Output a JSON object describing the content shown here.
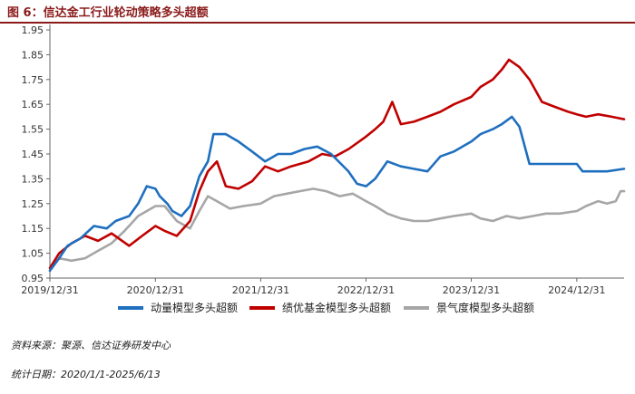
{
  "title": "图 6：信达金工行业轮动策略多头超额",
  "source_note": "资料来源：聚源、信达证券研发中心",
  "period_note": "统计日期：2020/1/1-2025/6/13",
  "chart_data": {
    "type": "line",
    "title": "",
    "xlabel": "",
    "ylabel": "",
    "ylim": [
      0.95,
      1.95
    ],
    "yticks": [
      "0.95",
      "1.05",
      "1.15",
      "1.25",
      "1.35",
      "1.45",
      "1.55",
      "1.65",
      "1.75",
      "1.85",
      "1.95"
    ],
    "xticks": [
      "2019/12/31",
      "2020/12/31",
      "2021/12/31",
      "2022/12/31",
      "2023/12/31",
      "2024/12/31"
    ],
    "xlim": [
      "2019-12-31",
      "2025-06-13"
    ],
    "grid": false,
    "legend": "bottom",
    "series": [
      {
        "name": "动量模型多头超额",
        "color": "#1f6fbf",
        "points": [
          [
            "2019-12-31",
            0.98
          ],
          [
            "2020-02-01",
            1.03
          ],
          [
            "2020-03-01",
            1.08
          ],
          [
            "2020-04-15",
            1.11
          ],
          [
            "2020-06-01",
            1.16
          ],
          [
            "2020-07-15",
            1.15
          ],
          [
            "2020-08-15",
            1.18
          ],
          [
            "2020-10-01",
            1.2
          ],
          [
            "2020-11-01",
            1.25
          ],
          [
            "2020-12-01",
            1.32
          ],
          [
            "2020-12-31",
            1.31
          ],
          [
            "2021-01-15",
            1.28
          ],
          [
            "2021-02-10",
            1.25
          ],
          [
            "2021-02-28",
            1.22
          ],
          [
            "2021-03-31",
            1.2
          ],
          [
            "2021-04-30",
            1.24
          ],
          [
            "2021-06-01",
            1.36
          ],
          [
            "2021-07-01",
            1.42
          ],
          [
            "2021-07-20",
            1.53
          ],
          [
            "2021-09-01",
            1.53
          ],
          [
            "2021-10-15",
            1.5
          ],
          [
            "2021-12-01",
            1.46
          ],
          [
            "2022-01-15",
            1.42
          ],
          [
            "2022-03-01",
            1.45
          ],
          [
            "2022-04-15",
            1.45
          ],
          [
            "2022-06-01",
            1.47
          ],
          [
            "2022-07-15",
            1.48
          ],
          [
            "2022-09-01",
            1.45
          ],
          [
            "2022-10-31",
            1.38
          ],
          [
            "2022-11-30",
            1.33
          ],
          [
            "2022-12-31",
            1.32
          ],
          [
            "2023-02-01",
            1.35
          ],
          [
            "2023-03-15",
            1.42
          ],
          [
            "2023-05-01",
            1.4
          ],
          [
            "2023-06-15",
            1.39
          ],
          [
            "2023-08-01",
            1.38
          ],
          [
            "2023-09-15",
            1.44
          ],
          [
            "2023-11-01",
            1.46
          ],
          [
            "2023-12-31",
            1.5
          ],
          [
            "2024-02-01",
            1.53
          ],
          [
            "2024-03-15",
            1.55
          ],
          [
            "2024-04-15",
            1.57
          ],
          [
            "2024-05-20",
            1.6
          ],
          [
            "2024-06-15",
            1.56
          ],
          [
            "2024-07-20",
            1.41
          ],
          [
            "2024-09-01",
            1.41
          ],
          [
            "2024-10-15",
            1.41
          ],
          [
            "2024-12-01",
            1.41
          ],
          [
            "2024-12-31",
            1.41
          ],
          [
            "2025-01-20",
            1.38
          ],
          [
            "2025-03-01",
            1.38
          ],
          [
            "2025-04-15",
            1.38
          ],
          [
            "2025-06-13",
            1.39
          ]
        ]
      },
      {
        "name": "绩优基金模型多头超额",
        "color": "#c00000",
        "points": [
          [
            "2019-12-31",
            0.99
          ],
          [
            "2020-02-01",
            1.05
          ],
          [
            "2020-03-15",
            1.09
          ],
          [
            "2020-05-01",
            1.12
          ],
          [
            "2020-06-15",
            1.1
          ],
          [
            "2020-08-01",
            1.13
          ],
          [
            "2020-10-01",
            1.08
          ],
          [
            "2020-11-15",
            1.12
          ],
          [
            "2020-12-31",
            1.16
          ],
          [
            "2021-02-01",
            1.14
          ],
          [
            "2021-03-15",
            1.12
          ],
          [
            "2021-04-30",
            1.18
          ],
          [
            "2021-06-01",
            1.3
          ],
          [
            "2021-07-01",
            1.38
          ],
          [
            "2021-08-01",
            1.42
          ],
          [
            "2021-09-01",
            1.32
          ],
          [
            "2021-10-15",
            1.31
          ],
          [
            "2021-12-01",
            1.34
          ],
          [
            "2022-01-15",
            1.4
          ],
          [
            "2022-03-01",
            1.38
          ],
          [
            "2022-04-15",
            1.4
          ],
          [
            "2022-06-15",
            1.42
          ],
          [
            "2022-08-01",
            1.45
          ],
          [
            "2022-09-15",
            1.44
          ],
          [
            "2022-11-01",
            1.47
          ],
          [
            "2022-12-31",
            1.52
          ],
          [
            "2023-02-01",
            1.55
          ],
          [
            "2023-03-01",
            1.58
          ],
          [
            "2023-04-01",
            1.66
          ],
          [
            "2023-05-01",
            1.57
          ],
          [
            "2023-06-15",
            1.58
          ],
          [
            "2023-08-01",
            1.6
          ],
          [
            "2023-09-15",
            1.62
          ],
          [
            "2023-11-01",
            1.65
          ],
          [
            "2023-12-31",
            1.68
          ],
          [
            "2024-02-01",
            1.72
          ],
          [
            "2024-03-15",
            1.75
          ],
          [
            "2024-04-15",
            1.79
          ],
          [
            "2024-05-10",
            1.83
          ],
          [
            "2024-06-15",
            1.8
          ],
          [
            "2024-07-20",
            1.75
          ],
          [
            "2024-09-01",
            1.66
          ],
          [
            "2024-10-15",
            1.64
          ],
          [
            "2024-12-01",
            1.62
          ],
          [
            "2024-12-31",
            1.61
          ],
          [
            "2025-02-01",
            1.6
          ],
          [
            "2025-03-15",
            1.61
          ],
          [
            "2025-05-01",
            1.6
          ],
          [
            "2025-06-13",
            1.59
          ]
        ]
      },
      {
        "name": "景气度模型多头超额",
        "color": "#a6a6a6",
        "points": [
          [
            "2019-12-31",
            0.98
          ],
          [
            "2020-02-01",
            1.03
          ],
          [
            "2020-03-15",
            1.02
          ],
          [
            "2020-05-01",
            1.03
          ],
          [
            "2020-06-15",
            1.06
          ],
          [
            "2020-08-01",
            1.09
          ],
          [
            "2020-09-15",
            1.14
          ],
          [
            "2020-11-01",
            1.2
          ],
          [
            "2020-12-31",
            1.24
          ],
          [
            "2021-02-01",
            1.24
          ],
          [
            "2021-03-15",
            1.18
          ],
          [
            "2021-04-30",
            1.15
          ],
          [
            "2021-06-01",
            1.22
          ],
          [
            "2021-07-01",
            1.28
          ],
          [
            "2021-08-01",
            1.26
          ],
          [
            "2021-09-15",
            1.23
          ],
          [
            "2021-11-01",
            1.24
          ],
          [
            "2021-12-31",
            1.25
          ],
          [
            "2022-02-15",
            1.28
          ],
          [
            "2022-04-01",
            1.29
          ],
          [
            "2022-05-15",
            1.3
          ],
          [
            "2022-07-01",
            1.31
          ],
          [
            "2022-08-15",
            1.3
          ],
          [
            "2022-10-01",
            1.28
          ],
          [
            "2022-11-15",
            1.29
          ],
          [
            "2022-12-31",
            1.26
          ],
          [
            "2023-02-01",
            1.24
          ],
          [
            "2023-03-15",
            1.21
          ],
          [
            "2023-05-01",
            1.19
          ],
          [
            "2023-06-15",
            1.18
          ],
          [
            "2023-08-01",
            1.18
          ],
          [
            "2023-09-15",
            1.19
          ],
          [
            "2023-11-01",
            1.2
          ],
          [
            "2023-12-31",
            1.21
          ],
          [
            "2024-02-01",
            1.19
          ],
          [
            "2024-03-15",
            1.18
          ],
          [
            "2024-05-01",
            1.2
          ],
          [
            "2024-06-15",
            1.19
          ],
          [
            "2024-08-01",
            1.2
          ],
          [
            "2024-09-15",
            1.21
          ],
          [
            "2024-11-01",
            1.21
          ],
          [
            "2024-12-31",
            1.22
          ],
          [
            "2025-02-01",
            1.24
          ],
          [
            "2025-03-15",
            1.26
          ],
          [
            "2025-04-15",
            1.25
          ],
          [
            "2025-05-15",
            1.26
          ],
          [
            "2025-06-01",
            1.3
          ],
          [
            "2025-06-13",
            1.3
          ]
        ]
      }
    ]
  }
}
